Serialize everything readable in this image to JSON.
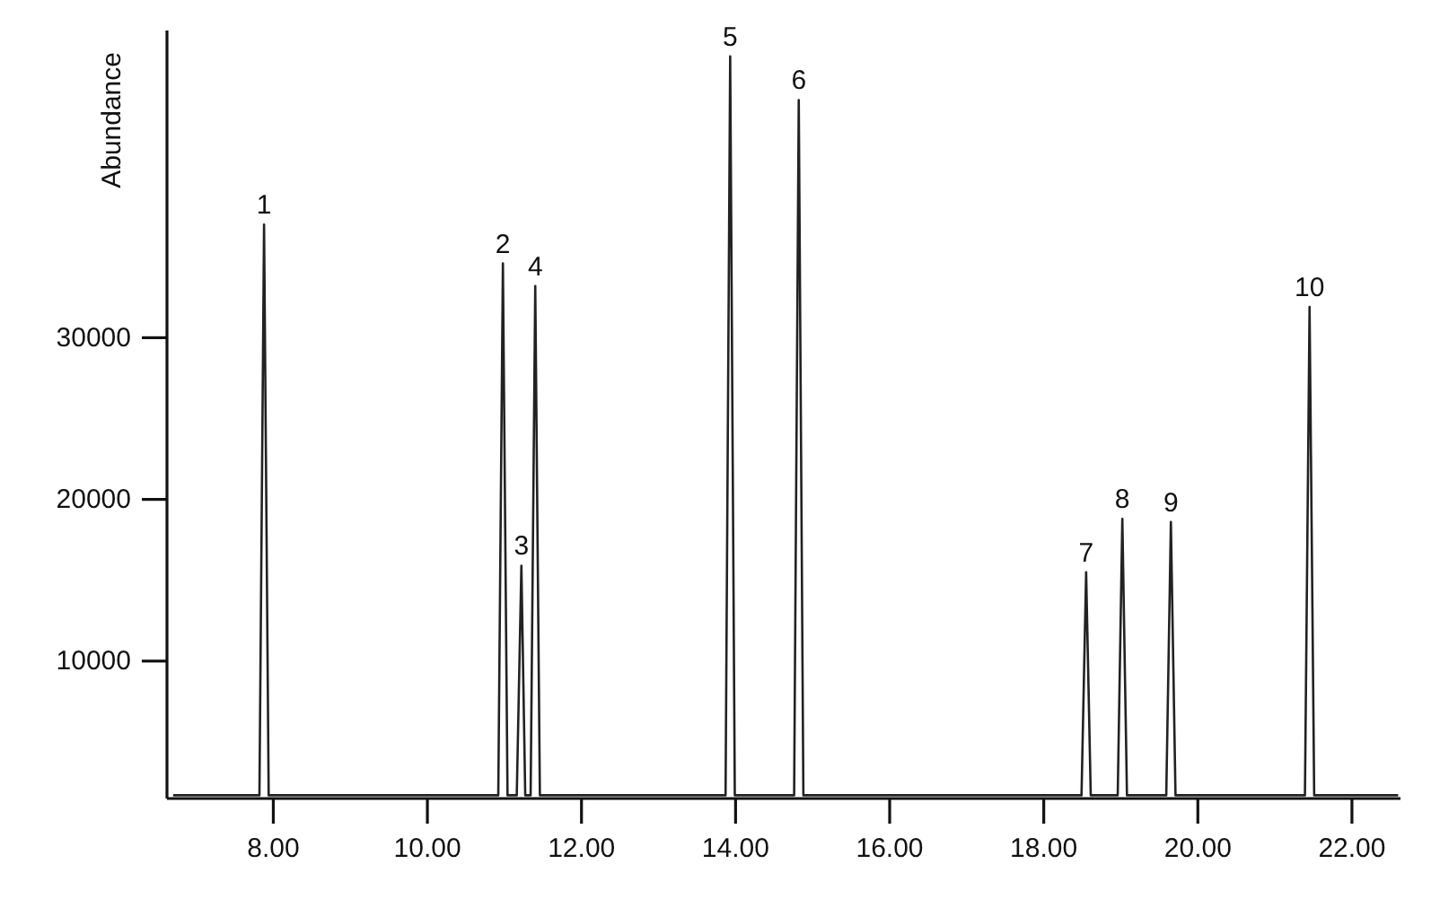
{
  "chart_data": {
    "type": "line",
    "ylabel": "Abundance",
    "xlim": [
      6.62,
      22.63
    ],
    "ylim": [
      1500,
      49000
    ],
    "xticks": [
      {
        "value": 8,
        "label": "8.00"
      },
      {
        "value": 10,
        "label": "10.00"
      },
      {
        "value": 12,
        "label": "12.00"
      },
      {
        "value": 14,
        "label": "14.00"
      },
      {
        "value": 16,
        "label": "16.00"
      },
      {
        "value": 18,
        "label": "18.00"
      },
      {
        "value": 20,
        "label": "20.00"
      },
      {
        "value": 22,
        "label": "22.00"
      }
    ],
    "yticks": [
      10000,
      20000,
      30000
    ],
    "marker": "none",
    "line_style": "solid",
    "series": [
      {
        "color": "#222222",
        "x": [
          6.7,
          7.82,
          7.88,
          7.94,
          8.0,
          10.92,
          10.98,
          11.04,
          11.16,
          11.22,
          11.27,
          11.34,
          11.4,
          11.46,
          11.55,
          13.87,
          13.93,
          13.99,
          14.05,
          14.76,
          14.82,
          14.88,
          14.95,
          18.49,
          18.55,
          18.61,
          18.68,
          18.96,
          19.02,
          19.08,
          19.14,
          19.59,
          19.65,
          19.71,
          19.78,
          21.39,
          21.45,
          21.51,
          21.6,
          22.6
        ],
        "values": [
          1700,
          1700,
          37000,
          1700,
          1700,
          1700,
          34600,
          1700,
          1700,
          15900,
          1700,
          1700,
          33200,
          1700,
          1700,
          1700,
          47400,
          1700,
          1700,
          1700,
          44700,
          1700,
          1700,
          1700,
          15500,
          1700,
          1700,
          1700,
          18800,
          1700,
          1700,
          1700,
          18600,
          1700,
          1700,
          1700,
          31900,
          1700,
          1700,
          1700
        ]
      }
    ],
    "annotations": [
      {
        "text": "1",
        "x": 7.88,
        "y": 37000
      },
      {
        "text": "2",
        "x": 10.98,
        "y": 34600
      },
      {
        "text": "3",
        "x": 11.22,
        "y": 15900
      },
      {
        "text": "4",
        "x": 11.4,
        "y": 33200
      },
      {
        "text": "5",
        "x": 13.93,
        "y": 47400
      },
      {
        "text": "6",
        "x": 14.82,
        "y": 44700
      },
      {
        "text": "7",
        "x": 18.55,
        "y": 15500
      },
      {
        "text": "8",
        "x": 19.02,
        "y": 18800
      },
      {
        "text": "9",
        "x": 19.65,
        "y": 18600
      },
      {
        "text": "10",
        "x": 21.45,
        "y": 31900
      }
    ]
  }
}
